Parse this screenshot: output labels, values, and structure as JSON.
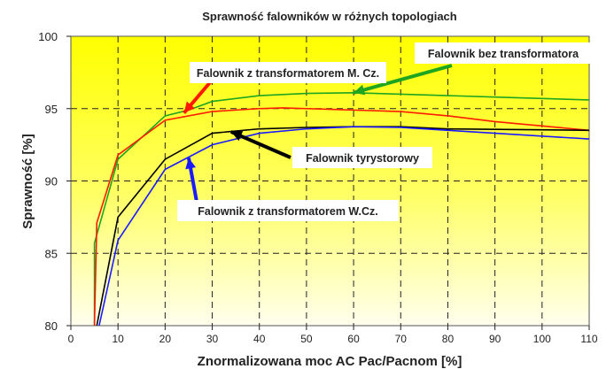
{
  "chart_data": {
    "type": "line",
    "title": "Sprawność falowników w różnych topologiach",
    "xlabel": "Znormalizowana moc AC Pac/Pacnom [%]",
    "ylabel": "Sprawność [%]",
    "xlim": [
      0,
      110
    ],
    "ylim": [
      80,
      100
    ],
    "xticks": [
      "0",
      "10",
      "20",
      "30",
      "40",
      "50",
      "60",
      "70",
      "80",
      "90",
      "100",
      "110"
    ],
    "yticks": [
      "80",
      "85",
      "90",
      "95",
      "100"
    ],
    "grid": true,
    "background": "yellow-gradient",
    "series": [
      {
        "name": "Falownik bez transformatora",
        "color": "#1fa51f",
        "x": [
          5,
          5,
          10,
          20,
          25,
          30,
          40,
          50,
          60,
          70,
          80,
          90,
          110
        ],
        "y": [
          80,
          85.7,
          91.5,
          94.5,
          94.9,
          95.5,
          95.9,
          96.05,
          96.1,
          96.0,
          95.9,
          95.8,
          95.6
        ]
      },
      {
        "name": "Falownik z transformatorem M. Cz.",
        "color": "#ff1a00",
        "x": [
          5,
          5.5,
          10,
          20,
          30,
          40,
          45,
          50,
          60,
          70,
          80,
          90,
          110
        ],
        "y": [
          80,
          87.1,
          91.8,
          94.2,
          94.8,
          95.0,
          95.05,
          95.0,
          94.9,
          94.8,
          94.5,
          94.1,
          93.5
        ]
      },
      {
        "name": "Falownik tyrystorowy",
        "color": "#000000",
        "x": [
          5.5,
          10,
          20,
          30,
          40,
          50,
          60,
          70,
          80,
          110
        ],
        "y": [
          80,
          87.5,
          91.5,
          93.3,
          93.6,
          93.7,
          93.75,
          93.75,
          93.6,
          93.5
        ]
      },
      {
        "name": "Falownik z transformatorem W.Cz.",
        "color": "#1a1aff",
        "x": [
          6,
          10,
          20,
          30,
          40,
          50,
          60,
          70,
          80,
          90,
          110
        ],
        "y": [
          80,
          85.9,
          90.8,
          92.5,
          93.3,
          93.6,
          93.75,
          93.7,
          93.5,
          93.3,
          92.9
        ]
      }
    ]
  }
}
